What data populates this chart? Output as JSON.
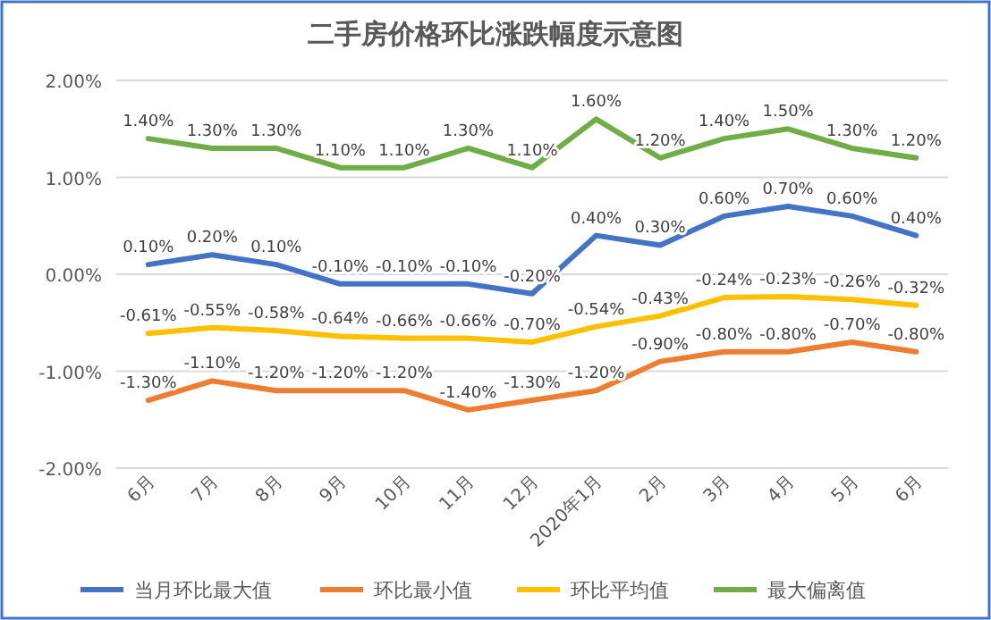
{
  "chart_data": {
    "type": "line",
    "title": "二手房价格环比涨跌幅度示意图",
    "categories": [
      "6月",
      "7月",
      "8月",
      "9月",
      "10月",
      "11月",
      "12月",
      "2020年1月",
      "2月",
      "3月",
      "4月",
      "5月",
      "6月"
    ],
    "series": [
      {
        "name": "当月环比最大值",
        "color": "#4472c4",
        "values": [
          0.1,
          0.2,
          0.1,
          -0.1,
          -0.1,
          -0.1,
          -0.2,
          0.4,
          0.3,
          0.6,
          0.7,
          0.6,
          0.4
        ],
        "value_labels": [
          "0.10%",
          "0.20%",
          "0.10%",
          "-0.10%",
          "-0.10%",
          "-0.10%",
          "-0.20%",
          "0.40%",
          "0.30%",
          "0.60%",
          "0.70%",
          "0.60%",
          "0.40%"
        ]
      },
      {
        "name": "环比最小值",
        "color": "#ed7d31",
        "values": [
          -1.3,
          -1.1,
          -1.2,
          -1.2,
          -1.2,
          -1.4,
          -1.3,
          -1.2,
          -0.9,
          -0.8,
          -0.8,
          -0.7,
          -0.8
        ],
        "value_labels": [
          "-1.30%",
          "-1.10%",
          "-1.20%",
          "-1.20%",
          "-1.20%",
          "-1.40%",
          "-1.30%",
          "-1.20%",
          "-0.90%",
          "-0.80%",
          "-0.80%",
          "-0.70%",
          "-0.80%"
        ]
      },
      {
        "name": "环比平均值",
        "color": "#ffc000",
        "values": [
          -0.61,
          -0.55,
          -0.58,
          -0.64,
          -0.66,
          -0.66,
          -0.7,
          -0.54,
          -0.43,
          -0.24,
          -0.23,
          -0.26,
          -0.32
        ],
        "value_labels": [
          "-0.61%",
          "-0.55%",
          "-0.58%",
          "-0.64%",
          "-0.66%",
          "-0.66%",
          "-0.70%",
          "-0.54%",
          "-0.43%",
          "-0.24%",
          "-0.23%",
          "-0.26%",
          "-0.32%"
        ]
      },
      {
        "name": "最大偏离值",
        "color": "#70ad47",
        "values": [
          1.4,
          1.3,
          1.3,
          1.1,
          1.1,
          1.3,
          1.1,
          1.6,
          1.2,
          1.4,
          1.5,
          1.3,
          1.2
        ],
        "value_labels": [
          "1.40%",
          "1.30%",
          "1.30%",
          "1.10%",
          "1.10%",
          "1.30%",
          "1.10%",
          "1.60%",
          "1.20%",
          "1.40%",
          "1.50%",
          "1.30%",
          "1.20%"
        ]
      }
    ],
    "ylim": [
      -2,
      2
    ],
    "yticks": [
      {
        "value": -2,
        "label": "-2.00%"
      },
      {
        "value": -1,
        "label": "-1.00%"
      },
      {
        "value": 0,
        "label": "0.00%"
      },
      {
        "value": 1,
        "label": "1.00%"
      },
      {
        "value": 2,
        "label": "2.00%"
      }
    ],
    "grid": "y",
    "legend": "bottom",
    "marker": "none",
    "line_style": "solid"
  }
}
